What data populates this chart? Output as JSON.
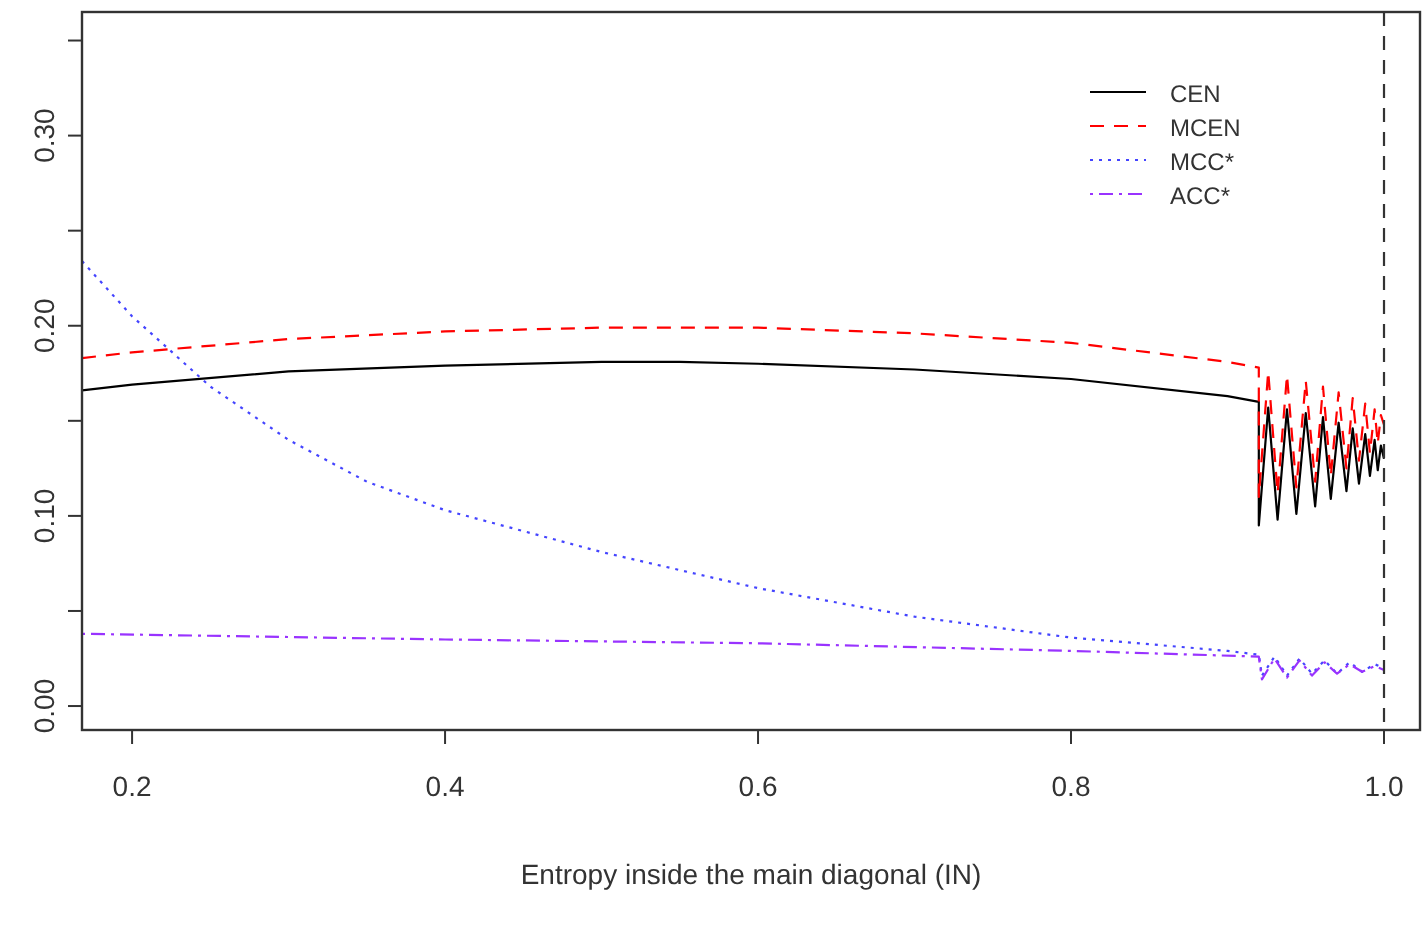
{
  "chart_data": {
    "type": "line",
    "xlabel": "Entropy inside the main diagonal (IN)",
    "xlim": [
      0.168,
      1.023
    ],
    "xticks": [
      {
        "value": 0.2,
        "label": "0.2"
      },
      {
        "value": 0.4,
        "label": "0.4"
      },
      {
        "value": 0.6,
        "label": "0.6"
      },
      {
        "value": 0.8,
        "label": "0.8"
      },
      {
        "value": 1.0,
        "label": "1.0"
      }
    ],
    "ylim": [
      -0.0126,
      0.365
    ],
    "yticks": [
      {
        "value": 0,
        "label": "0.00"
      },
      {
        "value": 0.05,
        "label": null
      },
      {
        "value": 0.1,
        "label": "0.10"
      },
      {
        "value": 0.15,
        "label": null
      },
      {
        "value": 0.2,
        "label": "0.20"
      },
      {
        "value": 0.25,
        "label": null
      },
      {
        "value": 0.3,
        "label": "0.30"
      },
      {
        "value": 0.35,
        "label": null
      }
    ],
    "grid": false,
    "legend": "top right",
    "ref_lines": [
      {
        "axis": "x",
        "value": 1.0,
        "color": "#333333",
        "line_style": "dashed"
      }
    ],
    "series": [
      {
        "name": "CEN",
        "color": "#000000",
        "line_style": "solid",
        "x": [
          0.168,
          0.2,
          0.3,
          0.4,
          0.5,
          0.55,
          0.6,
          0.7,
          0.8,
          0.9,
          0.92,
          0.92,
          0.926,
          0.932,
          0.938,
          0.944,
          0.95,
          0.956,
          0.961,
          0.966,
          0.971,
          0.976,
          0.98,
          0.984,
          0.988,
          0.991,
          0.994,
          0.996,
          0.998,
          1.0
        ],
        "values": [
          0.166,
          0.169,
          0.176,
          0.179,
          0.181,
          0.181,
          0.18,
          0.177,
          0.172,
          0.163,
          0.16,
          0.095,
          0.157,
          0.098,
          0.156,
          0.101,
          0.154,
          0.105,
          0.152,
          0.109,
          0.149,
          0.113,
          0.146,
          0.117,
          0.143,
          0.121,
          0.14,
          0.124,
          0.137,
          0.13
        ]
      },
      {
        "name": "MCEN",
        "color": "#ff0000",
        "line_style": "dashed",
        "x": [
          0.168,
          0.2,
          0.3,
          0.4,
          0.5,
          0.6,
          0.7,
          0.8,
          0.9,
          0.92,
          0.92,
          0.926,
          0.932,
          0.938,
          0.944,
          0.95,
          0.956,
          0.961,
          0.966,
          0.971,
          0.976,
          0.98,
          0.984,
          0.988,
          0.991,
          0.994,
          0.996,
          0.998,
          1.0
        ],
        "values": [
          0.183,
          0.186,
          0.193,
          0.197,
          0.199,
          0.199,
          0.196,
          0.191,
          0.181,
          0.178,
          0.11,
          0.176,
          0.112,
          0.174,
          0.115,
          0.171,
          0.118,
          0.168,
          0.121,
          0.165,
          0.125,
          0.162,
          0.129,
          0.159,
          0.133,
          0.156,
          0.138,
          0.153,
          0.148
        ]
      },
      {
        "name": "MCC*",
        "color": "#4444ff",
        "line_style": "dotted",
        "x": [
          0.168,
          0.2,
          0.25,
          0.3,
          0.35,
          0.4,
          0.5,
          0.6,
          0.7,
          0.8,
          0.9,
          0.92,
          0.922,
          0.93,
          0.938,
          0.946,
          0.954,
          0.962,
          0.97,
          0.978,
          0.986,
          0.994,
          1.0
        ],
        "values": [
          0.234,
          0.205,
          0.168,
          0.14,
          0.118,
          0.103,
          0.081,
          0.062,
          0.047,
          0.036,
          0.029,
          0.027,
          0.016,
          0.026,
          0.016,
          0.025,
          0.017,
          0.024,
          0.017,
          0.023,
          0.018,
          0.022,
          0.02
        ]
      },
      {
        "name": "ACC*",
        "color": "#9933ff",
        "line_style": "dashdot",
        "x": [
          0.168,
          0.4,
          0.6,
          0.8,
          0.92,
          0.922,
          0.93,
          0.938,
          0.946,
          0.954,
          0.962,
          0.97,
          0.978,
          0.986,
          0.994,
          1.0
        ],
        "values": [
          0.038,
          0.035,
          0.033,
          0.029,
          0.026,
          0.014,
          0.025,
          0.015,
          0.024,
          0.016,
          0.023,
          0.017,
          0.022,
          0.018,
          0.021,
          0.019
        ]
      }
    ]
  }
}
